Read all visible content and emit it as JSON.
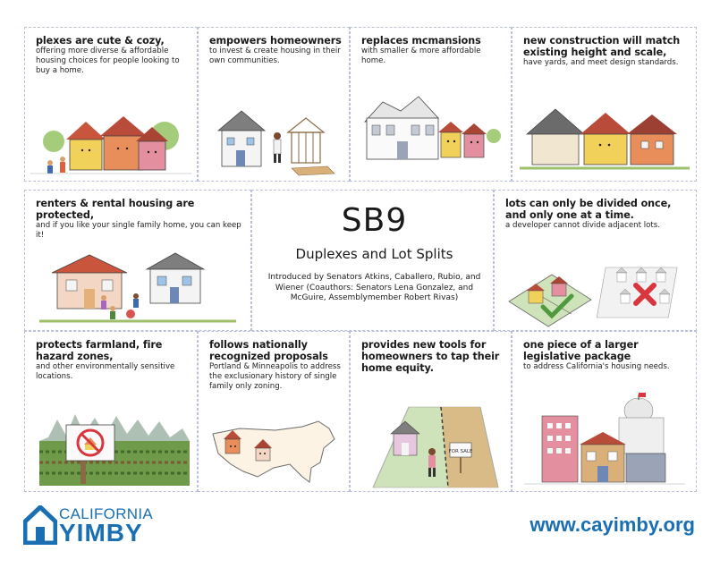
{
  "cards": [
    {
      "title": "plexes are cute & cozy,",
      "body": "offering more diverse & affordable housing choices for people looking to buy a home."
    },
    {
      "title": "empowers homeowners",
      "body": "to invest & create housing in their own communities."
    },
    {
      "title": "replaces mcmansions",
      "body": "with smaller & more affordable home."
    },
    {
      "title": "new construction will match existing height and scale,",
      "body": "have yards, and meet design standards."
    },
    {
      "title": "renters & rental housing are protected,",
      "body": "and if you like your single family home, you can keep it!"
    },
    {
      "title": "lots can only be divided once, and only one at a time.",
      "body": "a developer cannot divide adjacent lots."
    },
    {
      "title": "protects farmland, fire hazard zones,",
      "body": "and other environmentally sensitive locations."
    },
    {
      "title": "follows nationally recognized proposals",
      "body": "Portland & Minneapolis to address the exclusionary history of single family only zoning."
    },
    {
      "title": "provides new tools for homeowners to tap their home equity.",
      "body": ""
    },
    {
      "title": "one piece of a larger legislative package",
      "body": "to address California's housing needs."
    }
  ],
  "center": {
    "title": "SB9",
    "subtitle": "Duplexes and Lot Splits",
    "authors": "Introduced by Senators Atkins, Caballero, Rubio, and Wiener (Coauthors: Senators Lena Gonzalez, and McGuire, Assemblymember Robert Rivas)"
  },
  "sign_text": "FOR SALE",
  "footer": {
    "logo_top": "CALIFORNIA",
    "logo_bottom": "YIMBY",
    "url": "www.cayimby.org"
  },
  "colors": {
    "brand_blue": "#1a6fb2",
    "dash_border": "#b9bfdc"
  }
}
